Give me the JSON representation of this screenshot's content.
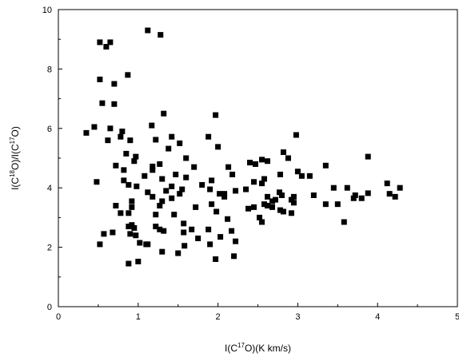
{
  "chart_data": {
    "type": "scatter",
    "xlabel": "I(C17O)(K km/s)",
    "ylabel": "I(C18O)/I(C17O)",
    "xlabel_parts": {
      "pre": "I(C",
      "sup": "17",
      "post": "O)(K km/s)"
    },
    "ylabel_parts": {
      "pre1": "I(C",
      "sup1": "18",
      "mid": "O)/I(C",
      "sup2": "17",
      "post": "O)"
    },
    "xlim": [
      0,
      5
    ],
    "ylim": [
      0,
      10
    ],
    "x_ticks": [
      "0",
      "1",
      "2",
      "3",
      "4",
      "5"
    ],
    "y_ticks": [
      "0",
      "2",
      "4",
      "6",
      "8",
      "10"
    ],
    "grid": false,
    "marker": "square",
    "marker_color": "#000000",
    "points": [
      [
        0.52,
        8.9
      ],
      [
        0.6,
        8.75
      ],
      [
        0.65,
        8.9
      ],
      [
        1.12,
        9.3
      ],
      [
        1.28,
        9.15
      ],
      [
        0.52,
        7.65
      ],
      [
        0.7,
        7.5
      ],
      [
        0.87,
        7.8
      ],
      [
        0.55,
        6.85
      ],
      [
        0.7,
        6.82
      ],
      [
        0.35,
        5.85
      ],
      [
        0.45,
        6.05
      ],
      [
        0.65,
        6.0
      ],
      [
        0.62,
        5.6
      ],
      [
        0.8,
        5.9
      ],
      [
        0.9,
        5.6
      ],
      [
        0.78,
        5.72
      ],
      [
        1.32,
        6.5
      ],
      [
        1.17,
        6.1
      ],
      [
        1.42,
        5.72
      ],
      [
        1.52,
        5.5
      ],
      [
        1.6,
        5.0
      ],
      [
        1.22,
        5.62
      ],
      [
        1.38,
        5.32
      ],
      [
        1.97,
        6.45
      ],
      [
        2.0,
        5.38
      ],
      [
        1.88,
        5.72
      ],
      [
        0.48,
        4.2
      ],
      [
        0.72,
        4.75
      ],
      [
        0.82,
        4.6
      ],
      [
        0.85,
        5.15
      ],
      [
        0.95,
        4.9
      ],
      [
        0.97,
        5.05
      ],
      [
        1.08,
        4.4
      ],
      [
        1.18,
        4.6
      ],
      [
        1.18,
        4.72
      ],
      [
        1.27,
        4.8
      ],
      [
        1.3,
        4.3
      ],
      [
        1.35,
        3.9
      ],
      [
        1.42,
        4.05
      ],
      [
        1.47,
        4.45
      ],
      [
        1.55,
        3.95
      ],
      [
        1.6,
        4.35
      ],
      [
        1.7,
        4.7
      ],
      [
        1.8,
        4.1
      ],
      [
        1.92,
        4.25
      ],
      [
        1.9,
        3.95
      ],
      [
        2.02,
        3.8
      ],
      [
        2.08,
        3.7
      ],
      [
        2.13,
        4.7
      ],
      [
        2.18,
        4.45
      ],
      [
        2.22,
        3.9
      ],
      [
        0.82,
        4.25
      ],
      [
        0.88,
        4.1
      ],
      [
        0.92,
        3.55
      ],
      [
        0.98,
        4.05
      ],
      [
        1.12,
        3.85
      ],
      [
        1.18,
        3.7
      ],
      [
        1.27,
        3.4
      ],
      [
        1.3,
        3.55
      ],
      [
        1.42,
        3.65
      ],
      [
        1.52,
        3.8
      ],
      [
        1.72,
        3.35
      ],
      [
        1.92,
        3.45
      ],
      [
        1.98,
        3.2
      ],
      [
        0.72,
        3.4
      ],
      [
        0.78,
        3.15
      ],
      [
        0.88,
        3.15
      ],
      [
        0.92,
        3.35
      ],
      [
        1.22,
        3.1
      ],
      [
        1.45,
        3.1
      ],
      [
        1.57,
        2.8
      ],
      [
        1.57,
        2.5
      ],
      [
        0.52,
        2.1
      ],
      [
        0.57,
        2.45
      ],
      [
        0.68,
        2.5
      ],
      [
        0.88,
        2.7
      ],
      [
        0.92,
        2.75
      ],
      [
        0.95,
        2.65
      ],
      [
        0.9,
        2.45
      ],
      [
        0.97,
        2.4
      ],
      [
        1.02,
        2.15
      ],
      [
        1.1,
        2.1
      ],
      [
        1.12,
        2.1
      ],
      [
        1.27,
        2.6
      ],
      [
        1.32,
        2.55
      ],
      [
        1.22,
        2.7
      ],
      [
        1.3,
        1.85
      ],
      [
        1.5,
        1.8
      ],
      [
        1.58,
        2.05
      ],
      [
        1.67,
        2.6
      ],
      [
        1.75,
        2.3
      ],
      [
        1.88,
        2.6
      ],
      [
        1.9,
        2.1
      ],
      [
        1.97,
        1.6
      ],
      [
        2.03,
        2.35
      ],
      [
        2.08,
        3.8
      ],
      [
        2.12,
        2.95
      ],
      [
        2.17,
        2.55
      ],
      [
        2.2,
        1.7
      ],
      [
        2.22,
        2.2
      ],
      [
        0.88,
        1.45
      ],
      [
        1.0,
        1.52
      ],
      [
        2.4,
        4.85
      ],
      [
        2.47,
        4.8
      ],
      [
        2.55,
        4.95
      ],
      [
        2.62,
        4.9
      ],
      [
        2.78,
        4.45
      ],
      [
        2.82,
        5.2
      ],
      [
        2.88,
        5.0
      ],
      [
        2.98,
        5.78
      ],
      [
        3.0,
        4.55
      ],
      [
        3.05,
        4.4
      ],
      [
        2.35,
        3.95
      ],
      [
        2.45,
        4.2
      ],
      [
        2.55,
        4.15
      ],
      [
        2.58,
        4.3
      ],
      [
        2.62,
        3.7
      ],
      [
        2.68,
        3.55
      ],
      [
        2.72,
        3.6
      ],
      [
        2.77,
        3.85
      ],
      [
        2.8,
        3.75
      ],
      [
        2.92,
        3.6
      ],
      [
        2.95,
        3.7
      ],
      [
        3.15,
        4.4
      ],
      [
        3.2,
        3.75
      ],
      [
        3.35,
        4.75
      ],
      [
        3.45,
        4.0
      ],
      [
        3.5,
        3.45
      ],
      [
        3.62,
        4.0
      ],
      [
        3.7,
        3.65
      ],
      [
        3.72,
        3.75
      ],
      [
        3.8,
        3.65
      ],
      [
        3.88,
        3.82
      ],
      [
        3.88,
        5.05
      ],
      [
        4.12,
        4.15
      ],
      [
        4.15,
        3.8
      ],
      [
        4.22,
        3.7
      ],
      [
        4.28,
        4.0
      ],
      [
        2.38,
        3.3
      ],
      [
        2.45,
        3.35
      ],
      [
        2.52,
        3.0
      ],
      [
        2.55,
        2.85
      ],
      [
        2.58,
        3.45
      ],
      [
        2.62,
        3.4
      ],
      [
        2.68,
        3.35
      ],
      [
        2.78,
        3.25
      ],
      [
        2.82,
        3.2
      ],
      [
        2.92,
        3.15
      ],
      [
        3.35,
        3.45
      ],
      [
        3.58,
        2.85
      ],
      [
        2.95,
        3.5
      ]
    ]
  }
}
